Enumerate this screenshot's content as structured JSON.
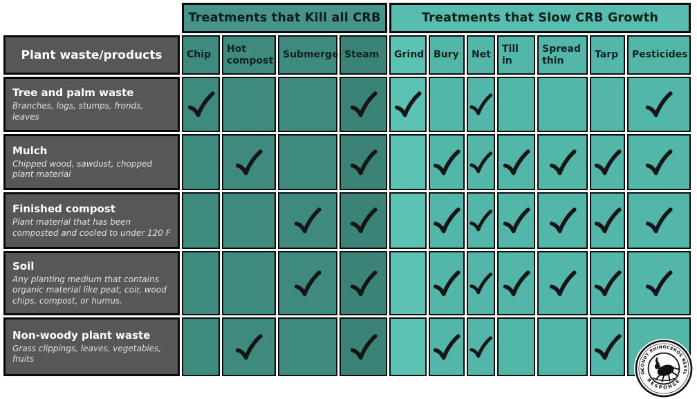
{
  "chart_data": {
    "type": "table",
    "row_header": "Plant waste/products",
    "column_groups": [
      {
        "label": "Treatments that Kill all CRB",
        "span": 4
      },
      {
        "label": "Treatments that Slow CRB Growth",
        "span": 7
      }
    ],
    "columns": [
      {
        "label": "Chip",
        "group": "kill"
      },
      {
        "label": "Hot compost",
        "group": "kill"
      },
      {
        "label": "Submerge",
        "group": "kill"
      },
      {
        "label": "Steam",
        "group": "kill"
      },
      {
        "label": "Grind",
        "group": "slow"
      },
      {
        "label": "Bury",
        "group": "slow"
      },
      {
        "label": "Net",
        "group": "slow"
      },
      {
        "label": "Till in",
        "group": "slow"
      },
      {
        "label": "Spread thin",
        "group": "slow"
      },
      {
        "label": "Tarp",
        "group": "slow"
      },
      {
        "label": "Pesticides",
        "group": "slow"
      }
    ],
    "rows": [
      {
        "label": "Tree and palm waste",
        "description": "Branches, logs, stumps, fronds, leaves",
        "checks": [
          1,
          0,
          0,
          1,
          1,
          0,
          1,
          0,
          0,
          0,
          1
        ]
      },
      {
        "label": "Mulch",
        "description": "Chipped wood, sawdust, chopped plant material",
        "checks": [
          0,
          1,
          0,
          1,
          0,
          1,
          1,
          1,
          1,
          1,
          1
        ]
      },
      {
        "label": "Finished compost",
        "description": "Plant material that has been composted and cooled to under 120 F",
        "checks": [
          0,
          0,
          1,
          1,
          0,
          1,
          1,
          1,
          1,
          1,
          1
        ]
      },
      {
        "label": "Soil",
        "description": "Any planting medium that contains organic material like peat, coir, wood chips, compost, or humus.",
        "checks": [
          0,
          0,
          1,
          1,
          0,
          1,
          1,
          1,
          1,
          1,
          1
        ]
      },
      {
        "label": "Non-woody plant waste",
        "description": "Grass clippings, leaves, vegetables, fruits",
        "checks": [
          0,
          1,
          0,
          1,
          0,
          1,
          1,
          0,
          0,
          1,
          0
        ]
      }
    ]
  },
  "logo": {
    "arc_top": "COCONUT RHINOCEROS BEETLE",
    "arc_bottom": "RESPONSE"
  },
  "colors": {
    "kill_cell": "#3f8a7e",
    "kill_banner": "#47948a",
    "steam_column": "#3b8377",
    "slow_cell": "#52b7a8",
    "grind_column": "#5cc2b3",
    "slow_banner": "#56bdaf",
    "row_label_bg": "#575757",
    "check": "#151515",
    "border": "#0c0c0c"
  }
}
